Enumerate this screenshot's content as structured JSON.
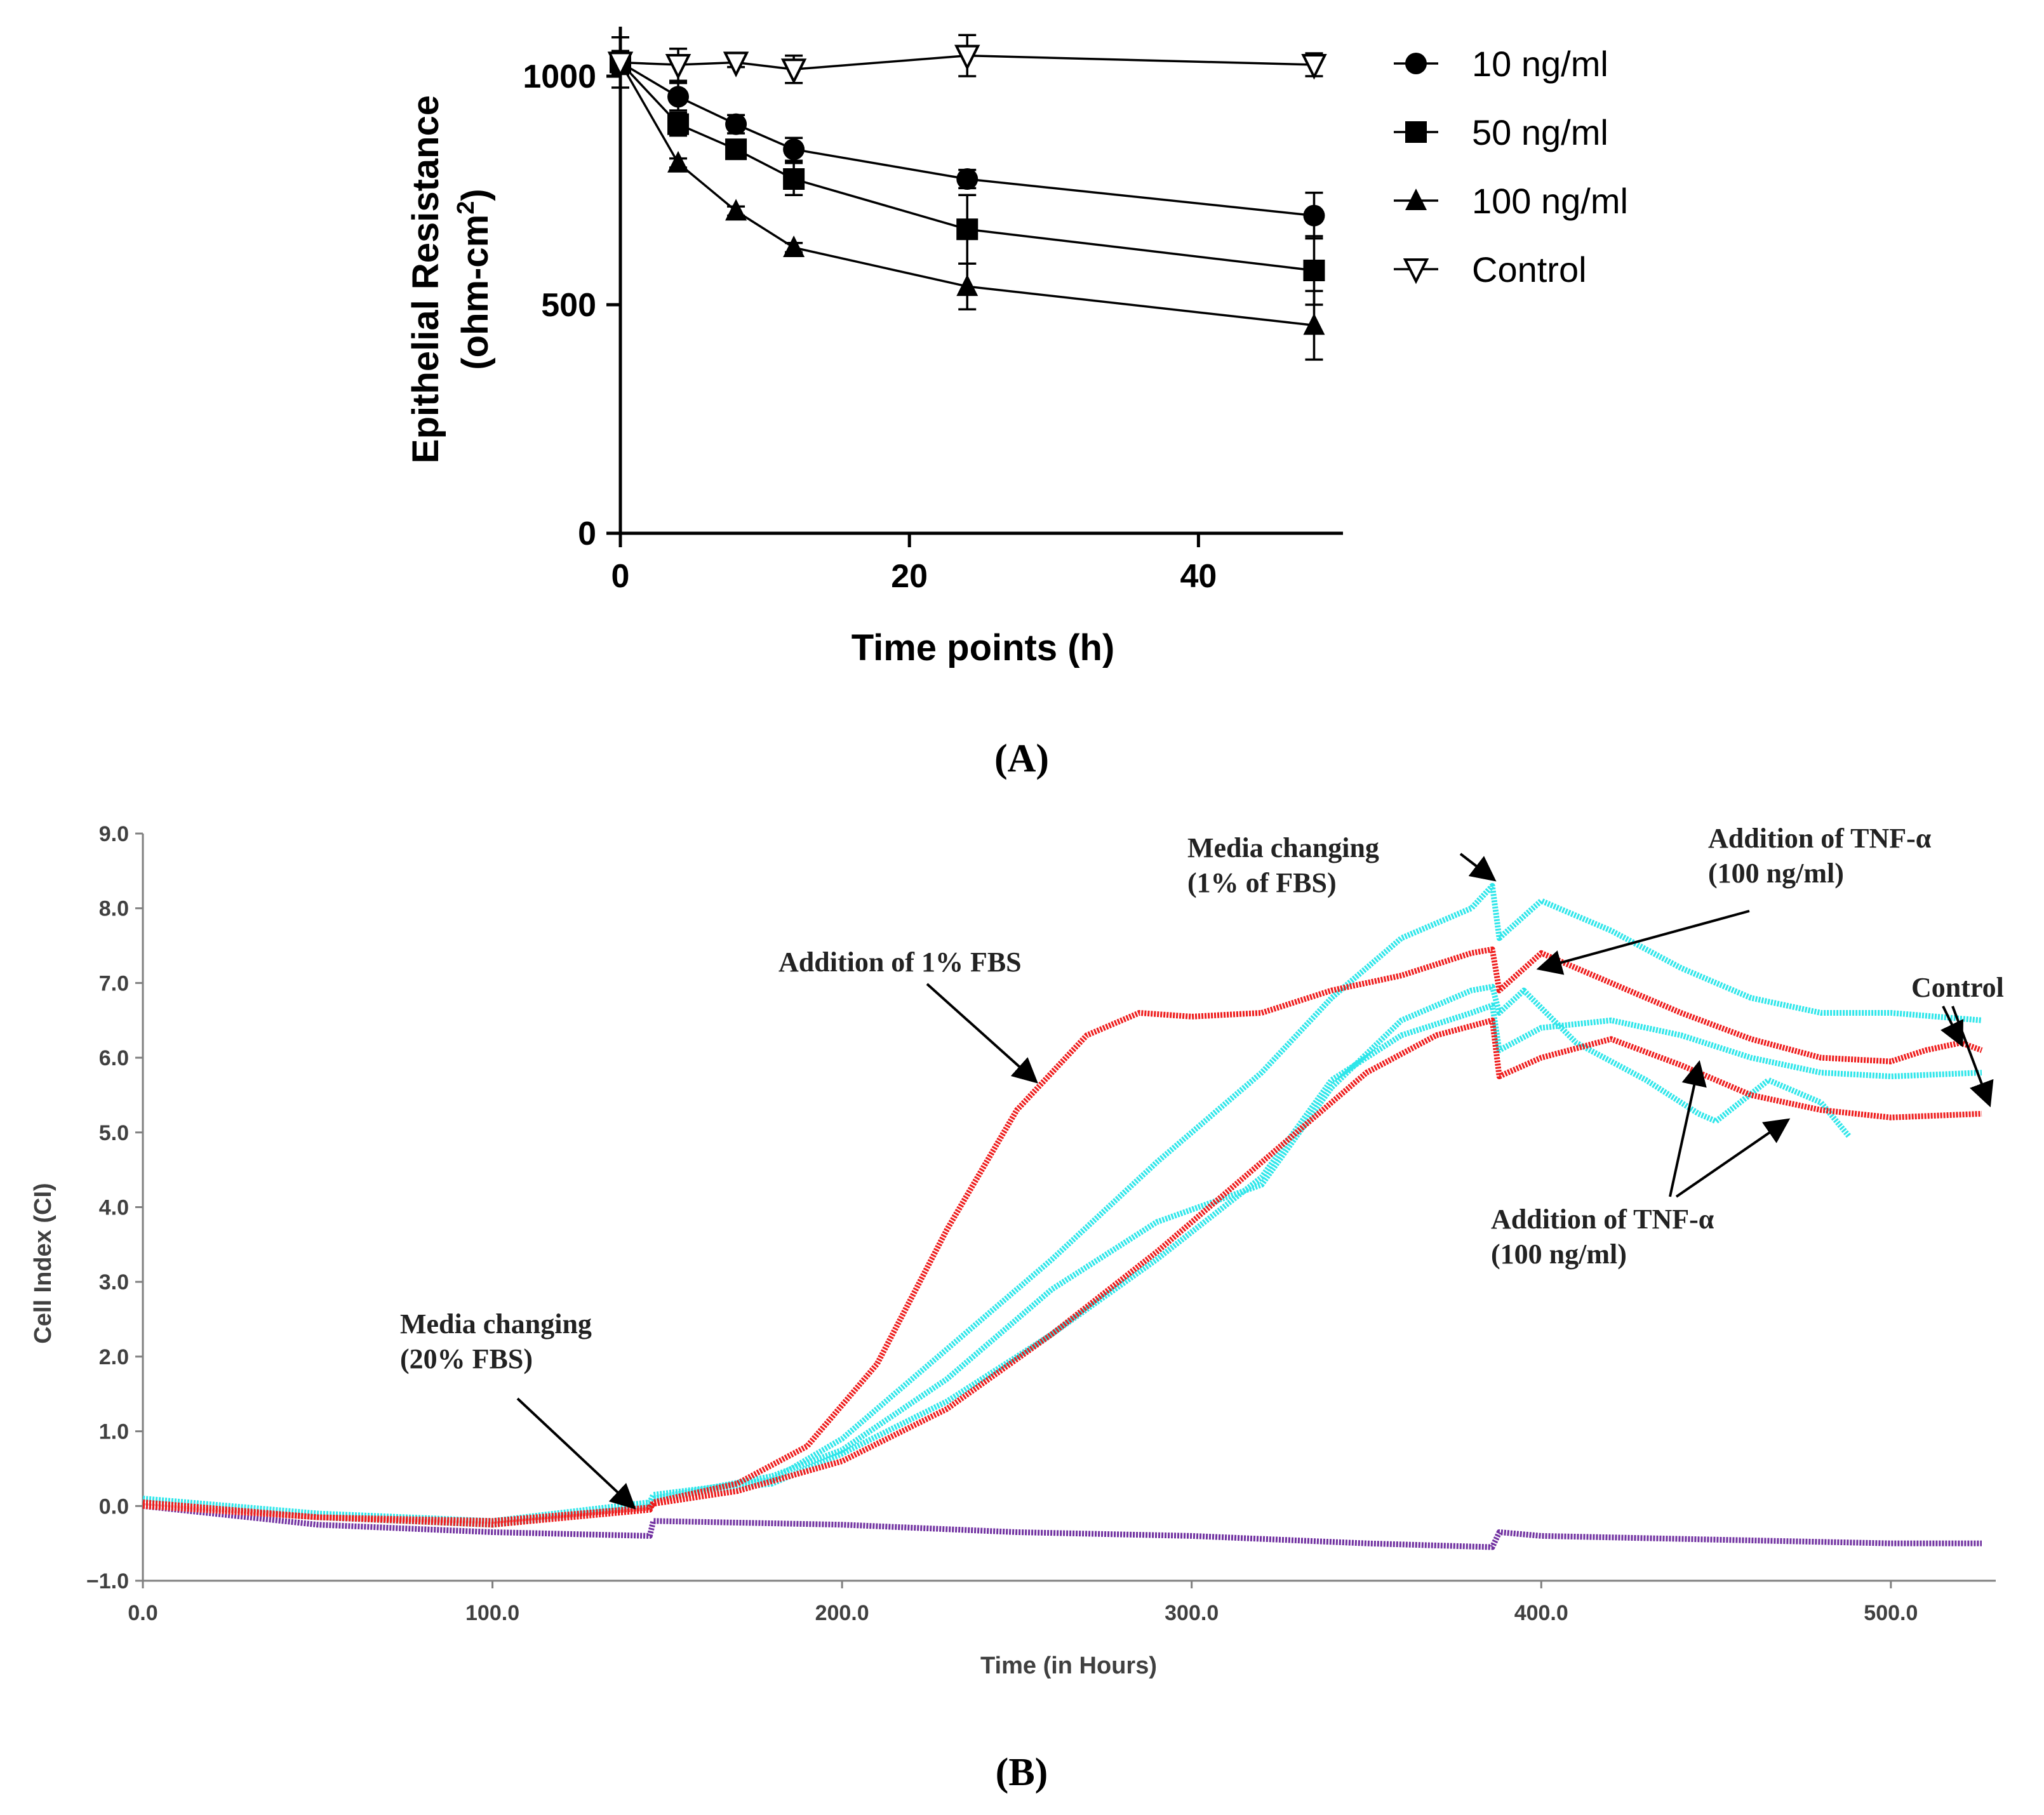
{
  "panel_labels": {
    "a": "(A)",
    "b": "(B)"
  },
  "colors": {
    "red": "#ee1c1c",
    "cyan": "#2ee6ea",
    "purple": "#7030a0",
    "black": "#000000",
    "axis_grey": "#808080"
  },
  "chart_data": [
    {
      "type": "line",
      "title": "",
      "xlabel": "Time points (h)",
      "ylabel": "Epithelial Resistance",
      "ylabel_unit": "(ohm-cm",
      "ylabel_unit_sup": "2",
      "ylabel_unit_close": ")",
      "xlim": [
        0,
        50
      ],
      "ylim": [
        0,
        1000
      ],
      "xticks": [
        0,
        20,
        40
      ],
      "xtick_labels": [
        "0",
        "20",
        "40"
      ],
      "yticks": [
        0,
        500,
        1000
      ],
      "ytick_labels": [
        "0",
        "500",
        "1000"
      ],
      "legend_position": "right",
      "x": [
        0,
        4,
        8,
        12,
        24,
        48
      ],
      "series": [
        {
          "name": "10 ng/ml",
          "marker": "circle",
          "values": [
            1030,
            955,
            895,
            840,
            775,
            695
          ],
          "error": [
            25,
            30,
            20,
            25,
            20,
            50
          ]
        },
        {
          "name": "50 ng/ml",
          "marker": "square",
          "values": [
            1030,
            895,
            840,
            775,
            665,
            575
          ],
          "error": [
            25,
            25,
            15,
            35,
            75,
            75
          ]
        },
        {
          "name": "100 ng/ml",
          "marker": "triangle-up",
          "values": [
            1030,
            810,
            705,
            625,
            540,
            455
          ],
          "error": [
            25,
            10,
            10,
            10,
            50,
            75
          ]
        },
        {
          "name": "Control",
          "marker": "triangle-down-open",
          "values": [
            1030,
            1025,
            1030,
            1015,
            1045,
            1025
          ],
          "error": [
            55,
            35,
            10,
            30,
            45,
            25
          ]
        }
      ]
    },
    {
      "type": "line",
      "title": "",
      "xlabel": "Time (in Hours)",
      "ylabel": "Cell Index (CI)",
      "xlim": [
        0,
        530
      ],
      "ylim": [
        -1,
        9
      ],
      "xticks": [
        0,
        100,
        200,
        300,
        400,
        500
      ],
      "xtick_labels": [
        "0.0",
        "100.0",
        "200.0",
        "300.0",
        "400.0",
        "500.0"
      ],
      "yticks": [
        -1,
        0,
        1,
        2,
        3,
        4,
        5,
        6,
        7,
        8,
        9
      ],
      "ytick_labels": [
        "−1.0",
        "0.0",
        "1.0",
        "2.0",
        "3.0",
        "4.0",
        "5.0",
        "6.0",
        "7.0",
        "8.0",
        "9.0"
      ],
      "series": [
        {
          "name": "red-1",
          "color": "red",
          "x": [
            0,
            50,
            100,
            145,
            146,
            170,
            190,
            210,
            230,
            250,
            270,
            285,
            300,
            320,
            340,
            360,
            380,
            386,
            388,
            400,
            420,
            440,
            460,
            480,
            500,
            510,
            520,
            526
          ],
          "values": [
            0.05,
            -0.15,
            -0.25,
            -0.05,
            0.05,
            0.3,
            0.8,
            1.9,
            3.7,
            5.3,
            6.3,
            6.6,
            6.55,
            6.6,
            6.9,
            7.1,
            7.4,
            7.45,
            6.9,
            7.4,
            7.0,
            6.6,
            6.25,
            6.0,
            5.95,
            6.1,
            6.2,
            6.1
          ]
        },
        {
          "name": "red-2",
          "color": "red",
          "x": [
            0,
            50,
            100,
            145,
            146,
            170,
            200,
            230,
            260,
            290,
            320,
            350,
            370,
            386,
            388,
            400,
            420,
            440,
            460,
            480,
            500,
            526
          ],
          "values": [
            0.0,
            -0.15,
            -0.2,
            -0.02,
            0.03,
            0.2,
            0.6,
            1.3,
            2.3,
            3.4,
            4.6,
            5.8,
            6.3,
            6.5,
            5.75,
            6.0,
            6.25,
            5.9,
            5.5,
            5.3,
            5.2,
            5.25
          ]
        },
        {
          "name": "cyan-1",
          "color": "cyan",
          "x": [
            0,
            50,
            100,
            145,
            146,
            180,
            200,
            230,
            260,
            290,
            320,
            340,
            360,
            380,
            386,
            388,
            400,
            420,
            440,
            460,
            480,
            500,
            526
          ],
          "values": [
            0.1,
            -0.1,
            -0.2,
            0.05,
            0.15,
            0.35,
            0.9,
            2.1,
            3.3,
            4.6,
            5.8,
            6.8,
            7.6,
            8.0,
            8.3,
            7.6,
            8.1,
            7.7,
            7.2,
            6.8,
            6.6,
            6.6,
            6.5
          ]
        },
        {
          "name": "cyan-2",
          "color": "cyan",
          "x": [
            0,
            50,
            100,
            145,
            146,
            180,
            200,
            230,
            260,
            290,
            320,
            340,
            360,
            380,
            386,
            388,
            395,
            410,
            430,
            445,
            450,
            465,
            480,
            488
          ],
          "values": [
            0.05,
            -0.15,
            -0.25,
            0.0,
            0.1,
            0.4,
            0.75,
            1.7,
            2.9,
            3.8,
            4.3,
            5.6,
            6.5,
            6.9,
            6.95,
            6.6,
            6.9,
            6.2,
            5.7,
            5.25,
            5.15,
            5.7,
            5.4,
            4.95
          ]
        },
        {
          "name": "cyan-3",
          "color": "cyan",
          "x": [
            0,
            50,
            100,
            145,
            146,
            180,
            200,
            230,
            260,
            290,
            320,
            340,
            360,
            380,
            386,
            388,
            400,
            420,
            440,
            460,
            480,
            500,
            526
          ],
          "values": [
            0.0,
            -0.15,
            -0.25,
            0.0,
            0.1,
            0.3,
            0.7,
            1.4,
            2.3,
            3.3,
            4.4,
            5.7,
            6.3,
            6.6,
            6.7,
            6.1,
            6.4,
            6.5,
            6.3,
            6.0,
            5.8,
            5.75,
            5.8
          ]
        },
        {
          "name": "purple",
          "color": "purple",
          "x": [
            0,
            50,
            100,
            145,
            146,
            200,
            250,
            300,
            350,
            386,
            388,
            400,
            450,
            500,
            526
          ],
          "values": [
            0.0,
            -0.25,
            -0.35,
            -0.4,
            -0.2,
            -0.25,
            -0.35,
            -0.4,
            -0.5,
            -0.55,
            -0.35,
            -0.4,
            -0.45,
            -0.5,
            -0.5
          ]
        }
      ],
      "annotations": [
        {
          "lines": [
            "Media changing",
            "(20% FBS)"
          ],
          "arrow_to": [
            140,
            0.0
          ]
        },
        {
          "lines": [
            "Addition of 1% FBS"
          ],
          "arrow_to": [
            255,
            5.7
          ]
        },
        {
          "lines": [
            "Media changing",
            "(1% of FBS)"
          ],
          "arrow_to": [
            386,
            8.4
          ]
        },
        {
          "lines": [
            "Addition of TNF-α",
            "(100 ng/ml)"
          ],
          "arrow_to": [
            400,
            7.2
          ]
        },
        {
          "lines": [
            "Control"
          ],
          "arrow_to": [
            520,
            6.2
          ]
        },
        {
          "lines": [
            "Addition of TNF-α",
            "(100 ng/ml)"
          ],
          "arrow_to": [
            445,
            5.9
          ]
        }
      ]
    }
  ]
}
